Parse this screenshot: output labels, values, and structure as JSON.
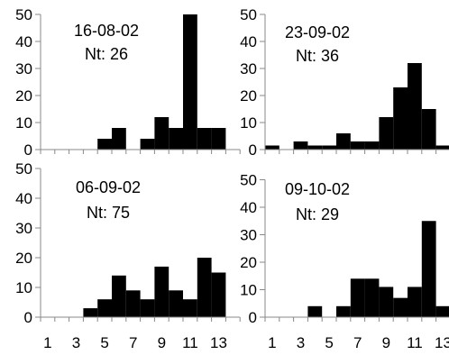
{
  "chart_data": [
    {
      "type": "bar",
      "annotation": {
        "date": "16-08-02",
        "nt": "Nt: 26"
      },
      "x": [
        1,
        2,
        3,
        4,
        5,
        6,
        7,
        8,
        9,
        10,
        11,
        12,
        13,
        14
      ],
      "values": [
        0,
        0,
        0,
        0,
        4,
        8,
        0,
        4,
        12,
        8,
        50,
        8,
        8,
        0
      ],
      "ylim": [
        0,
        50
      ],
      "yticks": [
        "0",
        "10",
        "20",
        "30",
        "40",
        "50"
      ]
    },
    {
      "type": "bar",
      "annotation": {
        "date": "23-09-02",
        "nt": "Nt: 36"
      },
      "x": [
        1,
        2,
        3,
        4,
        5,
        6,
        7,
        8,
        9,
        10,
        11,
        12,
        13,
        14
      ],
      "values": [
        1.5,
        0,
        3,
        1.5,
        1.5,
        6,
        3,
        3,
        12,
        23,
        32,
        15,
        1.5,
        0
      ],
      "ylim": [
        0,
        50
      ],
      "yticks": [
        "0",
        "10",
        "20",
        "30",
        "40",
        "50"
      ]
    },
    {
      "type": "bar",
      "annotation": {
        "date": "06-09-02",
        "nt": "Nt: 75"
      },
      "x": [
        1,
        2,
        3,
        4,
        5,
        6,
        7,
        8,
        9,
        10,
        11,
        12,
        13,
        14
      ],
      "values": [
        0,
        0,
        0,
        3,
        6,
        14,
        9,
        6,
        17,
        9,
        6,
        20,
        15,
        0
      ],
      "ylim": [
        0,
        50
      ],
      "yticks": [
        "0",
        "10",
        "20",
        "30",
        "40",
        "50"
      ]
    },
    {
      "type": "bar",
      "annotation": {
        "date": "09-10-02",
        "nt": "Nt: 29"
      },
      "x": [
        1,
        2,
        3,
        4,
        5,
        6,
        7,
        8,
        9,
        10,
        11,
        12,
        13,
        14
      ],
      "values": [
        0,
        0,
        0,
        4,
        0,
        4,
        14,
        14,
        11,
        7,
        11,
        35,
        4,
        0
      ],
      "ylim": [
        0,
        50
      ],
      "yticks": [
        "0",
        "10",
        "20",
        "30",
        "40",
        "50"
      ],
      "xticks": [
        "1",
        "3",
        "5",
        "7",
        "9",
        "11",
        "13"
      ]
    }
  ],
  "xticks": [
    "1",
    "3",
    "5",
    "7",
    "9",
    "11",
    "13"
  ]
}
